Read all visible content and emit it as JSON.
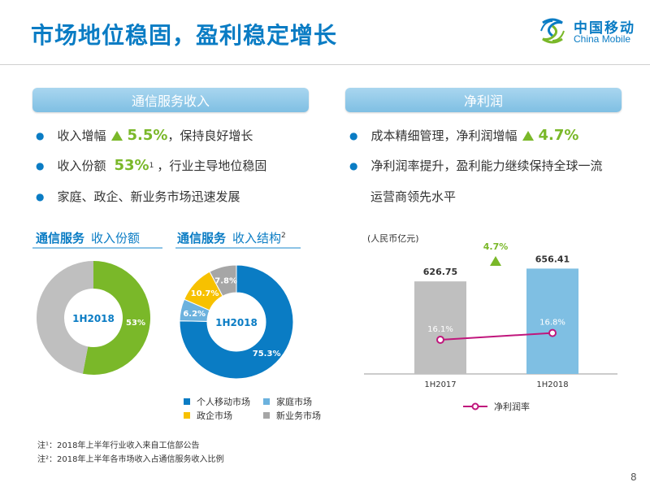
{
  "title": "市场地位稳固，盈利稳定增长",
  "logo": {
    "cn": "中国移动",
    "en": "China Mobile"
  },
  "left_panel": {
    "header": "通信服务收入",
    "bullets": [
      {
        "pre": "收入增幅",
        "value": "5.5%",
        "post": "，保持良好增长"
      },
      {
        "pre": "收入份额",
        "value": "53%",
        "sup": "1",
        "post": "，行业主导地位稳固"
      },
      {
        "text": "家庭、政企、新业务市场迅速发展"
      }
    ]
  },
  "right_panel": {
    "header": "净利润",
    "bullets": [
      {
        "pre": "成本精细管理，净利润增幅",
        "value": "4.7%"
      },
      {
        "text": "净利润率提升，盈利能力继续保持全球一流"
      },
      {
        "text": "运营商领先水平"
      }
    ]
  },
  "share_chart": {
    "title_bold": "通信服务",
    "title_sub": "收入份额",
    "center": "1H2018",
    "label": "53%",
    "chart_data": {
      "type": "pie",
      "labels": [
        "",
        ""
      ],
      "values": [
        53,
        47
      ],
      "colors": [
        "#7ab829",
        "#bfbfbf"
      ]
    }
  },
  "structure_chart": {
    "title_bold": "通信服务",
    "title_sub": "收入结构",
    "title_sup": "2",
    "center": "1H2018",
    "chart_data": {
      "type": "pie",
      "labels": [
        "个人移动市场",
        "家庭市场",
        "政企市场",
        "新业务市场"
      ],
      "values": [
        75.3,
        6.2,
        10.7,
        7.8
      ],
      "value_labels": [
        "75.3%",
        "6.2%",
        "10.7%",
        "7.8%"
      ],
      "colors": [
        "#0a7cc4",
        "#6cb2de",
        "#f7c100",
        "#a6a6a6"
      ]
    }
  },
  "profit_chart": {
    "chart_data": {
      "type": "bar",
      "unit_label": "(人民币亿元)",
      "categories": [
        "1H2017",
        "1H2018"
      ],
      "values": [
        626.75,
        656.41
      ],
      "value_labels": [
        "626.75",
        "656.41"
      ],
      "bar_colors": [
        "#bfbfbf",
        "#7fbfe3"
      ],
      "growth_label": "4.7%",
      "line_series": {
        "name": "净利润率",
        "values": [
          16.1,
          16.8
        ],
        "labels": [
          "16.1%",
          "16.8%"
        ],
        "color": "#c0167c"
      }
    }
  },
  "notes": [
    "注¹：2018年上半年行业收入来自工信部公告",
    "注²：2018年上半年各市场收入占通信服务收入比例"
  ],
  "page_number": "8"
}
